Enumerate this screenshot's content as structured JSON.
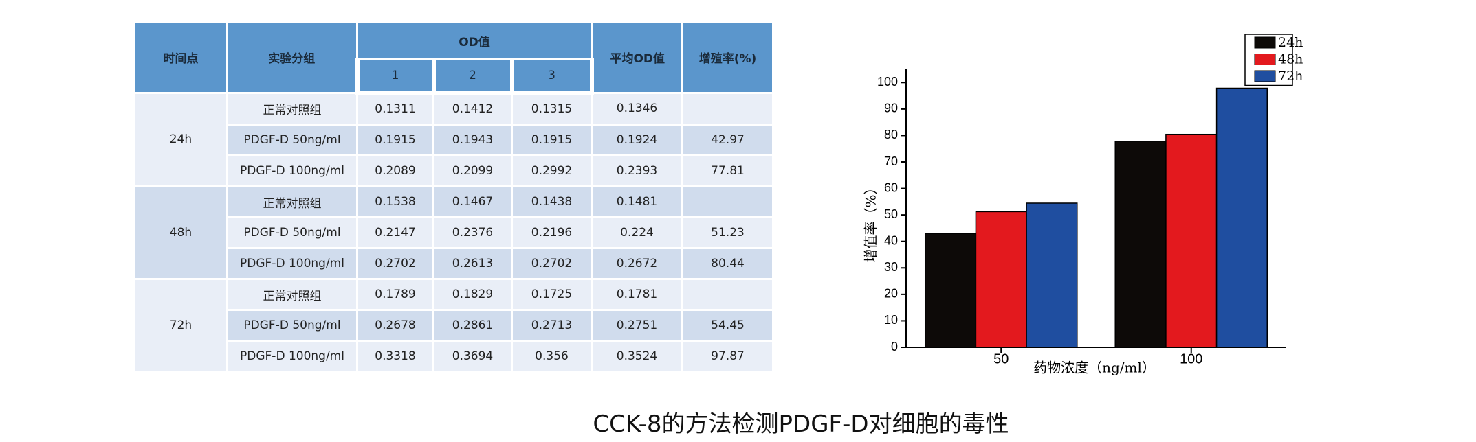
{
  "table": {
    "headers": {
      "time": "时间点",
      "group": "实验分组",
      "od": "OD值",
      "od_cols": [
        "1",
        "2",
        "3"
      ],
      "mean": "平均OD值",
      "rate": "增殖率(%)"
    },
    "groups": [
      {
        "time": "24h",
        "rows": [
          {
            "group": "正常对照组",
            "od": [
              0.1311,
              0.1412,
              0.1315
            ],
            "mean": 0.1346
          },
          {
            "group": "PDGF-D 50ng/ml",
            "od": [
              0.1915,
              0.1943,
              0.1915
            ],
            "mean": 0.1924,
            "rate": 42.97
          },
          {
            "group": "PDGF-D 100ng/ml",
            "od": [
              0.2089,
              0.2099,
              0.2992
            ],
            "mean": 0.2393,
            "rate": 77.81
          }
        ]
      },
      {
        "time": "48h",
        "rows": [
          {
            "group": "正常对照组",
            "od": [
              0.1538,
              0.1467,
              0.1438
            ],
            "mean": 0.1481
          },
          {
            "group": "PDGF-D 50ng/ml",
            "od": [
              0.2147,
              0.2376,
              0.2196
            ],
            "mean": 0.224,
            "rate": 51.23
          },
          {
            "group": "PDGF-D 100ng/ml",
            "od": [
              0.2702,
              0.2613,
              0.2702
            ],
            "mean": 0.2672,
            "rate": 80.44
          }
        ]
      },
      {
        "time": "72h",
        "rows": [
          {
            "group": "正常对照组",
            "od": [
              0.1789,
              0.1829,
              0.1725
            ],
            "mean": 0.1781
          },
          {
            "group": "PDGF-D 50ng/ml",
            "od": [
              0.2678,
              0.2861,
              0.2713
            ],
            "mean": 0.2751,
            "rate": 54.45
          },
          {
            "group": "PDGF-D 100ng/ml",
            "od": [
              0.3318,
              0.3694,
              0.356
            ],
            "mean": 0.3524,
            "rate": 97.87
          }
        ]
      }
    ]
  },
  "chart_data": {
    "type": "bar",
    "x_label": "药物浓度（ng/ml）",
    "y_label": "增值率（%）",
    "categories": [
      "50",
      "100"
    ],
    "series": [
      {
        "name": "24h",
        "color": "#0d0a08",
        "values": [
          42.97,
          77.81
        ]
      },
      {
        "name": "48h",
        "color": "#e3191e",
        "values": [
          51.23,
          80.44
        ]
      },
      {
        "name": "72h",
        "color": "#1f4ea0",
        "values": [
          54.45,
          97.87
        ]
      }
    ],
    "ylim": [
      0,
      105
    ],
    "yticks": [
      0,
      10,
      20,
      30,
      40,
      50,
      60,
      70,
      80,
      90,
      100
    ],
    "legend": "top-right"
  },
  "caption": "CCK-8的方法检测PDGF-D对细胞的毒性"
}
